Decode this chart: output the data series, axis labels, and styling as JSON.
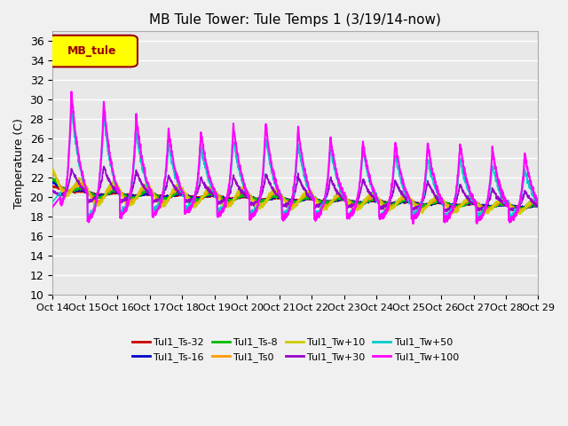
{
  "title": "MB Tule Tower: Tule Temps 1 (3/19/14-now)",
  "ylabel": "Temperature (C)",
  "ylim": [
    10,
    37
  ],
  "yticks": [
    10,
    12,
    14,
    16,
    18,
    20,
    22,
    24,
    26,
    28,
    30,
    32,
    34,
    36
  ],
  "xlim": [
    0,
    15
  ],
  "xtick_labels": [
    "Oct 14",
    "Oct 15",
    "Oct 16",
    "Oct 17",
    "Oct 18",
    "Oct 19",
    "Oct 20",
    "Oct 21",
    "Oct 22",
    "Oct 23",
    "Oct 24",
    "Oct 25",
    "Oct 26",
    "Oct 27",
    "Oct 28",
    "Oct 29"
  ],
  "legend_box_label": "MB_tule",
  "legend_box_color": "#ffff00",
  "legend_box_border": "#990000",
  "plot_bg": "#e8e8e8",
  "fig_bg": "#f0f0f0",
  "grid_color": "#ffffff",
  "series": [
    {
      "label": "Tul1_Ts-32",
      "color": "#cc0000",
      "lw": 1.2
    },
    {
      "label": "Tul1_Ts-16",
      "color": "#0000cc",
      "lw": 1.2
    },
    {
      "label": "Tul1_Ts-8",
      "color": "#00bb00",
      "lw": 1.2
    },
    {
      "label": "Tul1_Ts0",
      "color": "#ff9900",
      "lw": 1.2
    },
    {
      "label": "Tul1_Tw+10",
      "color": "#cccc00",
      "lw": 1.2
    },
    {
      "label": "Tul1_Tw+30",
      "color": "#9900cc",
      "lw": 1.2
    },
    {
      "label": "Tul1_Tw+50",
      "color": "#00cccc",
      "lw": 1.2
    },
    {
      "label": "Tul1_Tw+100",
      "color": "#ff00ff",
      "lw": 1.5
    }
  ]
}
